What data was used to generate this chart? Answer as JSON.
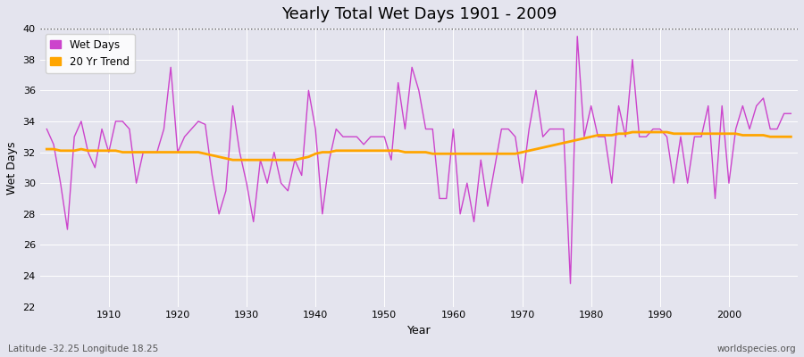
{
  "title": "Yearly Total Wet Days 1901 - 2009",
  "xlabel": "Year",
  "ylabel": "Wet Days",
  "lat_lon_label": "Latitude -32.25 Longitude 18.25",
  "source_label": "worldspecies.org",
  "line_color": "#CC44CC",
  "trend_color": "#FFA500",
  "background_color": "#E0E0E8",
  "plot_bg_color": "#E0E0E8",
  "ylim": [
    22,
    40
  ],
  "yticks": [
    22,
    24,
    26,
    28,
    30,
    32,
    34,
    36,
    38,
    40
  ],
  "dotted_line_y": 40,
  "years": [
    1901,
    1902,
    1903,
    1904,
    1905,
    1906,
    1907,
    1908,
    1909,
    1910,
    1911,
    1912,
    1913,
    1914,
    1915,
    1916,
    1917,
    1918,
    1919,
    1920,
    1921,
    1922,
    1923,
    1924,
    1925,
    1926,
    1927,
    1928,
    1929,
    1930,
    1931,
    1932,
    1933,
    1934,
    1935,
    1936,
    1937,
    1938,
    1939,
    1940,
    1941,
    1942,
    1943,
    1944,
    1945,
    1946,
    1947,
    1948,
    1949,
    1950,
    1951,
    1952,
    1953,
    1954,
    1955,
    1956,
    1957,
    1958,
    1959,
    1960,
    1961,
    1962,
    1963,
    1964,
    1965,
    1966,
    1967,
    1968,
    1969,
    1970,
    1971,
    1972,
    1973,
    1974,
    1975,
    1976,
    1977,
    1978,
    1979,
    1980,
    1981,
    1982,
    1983,
    1984,
    1985,
    1986,
    1987,
    1988,
    1989,
    1990,
    1991,
    1992,
    1993,
    1994,
    1995,
    1996,
    1997,
    1998,
    1999,
    2000,
    2001,
    2002,
    2003,
    2004,
    2005,
    2006,
    2007,
    2008,
    2009
  ],
  "wet_days": [
    33.5,
    32.5,
    30.0,
    27.0,
    33.0,
    34.0,
    32.0,
    31.0,
    33.5,
    32.0,
    34.0,
    34.0,
    33.5,
    30.0,
    32.0,
    32.0,
    32.0,
    33.5,
    37.5,
    32.0,
    33.0,
    33.5,
    34.0,
    33.8,
    30.5,
    28.0,
    29.5,
    35.0,
    32.0,
    30.0,
    27.5,
    31.5,
    30.0,
    32.0,
    30.0,
    29.5,
    31.5,
    30.5,
    36.0,
    33.5,
    28.0,
    31.5,
    33.5,
    33.0,
    33.0,
    33.0,
    32.5,
    33.0,
    33.0,
    33.0,
    31.5,
    36.5,
    33.5,
    37.5,
    36.0,
    33.5,
    33.5,
    29.0,
    29.0,
    33.5,
    28.0,
    30.0,
    27.5,
    31.5,
    28.5,
    31.0,
    33.5,
    33.5,
    33.0,
    30.0,
    33.5,
    36.0,
    33.0,
    33.5,
    33.5,
    33.5,
    23.5,
    39.5,
    33.0,
    35.0,
    33.0,
    33.0,
    30.0,
    35.0,
    33.0,
    38.0,
    33.0,
    33.0,
    33.5,
    33.5,
    33.0,
    30.0,
    33.0,
    30.0,
    33.0,
    33.0,
    35.0,
    29.0,
    35.0,
    30.0,
    33.5,
    35.0,
    33.5,
    35.0,
    35.5,
    33.5,
    33.5,
    34.5,
    34.5
  ],
  "trend_years": [
    1901,
    1902,
    1903,
    1904,
    1905,
    1906,
    1907,
    1908,
    1909,
    1910,
    1911,
    1912,
    1913,
    1914,
    1915,
    1916,
    1917,
    1918,
    1919,
    1920,
    1921,
    1922,
    1923,
    1924,
    1925,
    1926,
    1927,
    1928,
    1929,
    1930,
    1931,
    1932,
    1933,
    1934,
    1935,
    1936,
    1937,
    1938,
    1939,
    1940,
    1941,
    1942,
    1943,
    1944,
    1945,
    1946,
    1947,
    1948,
    1949,
    1950,
    1951,
    1952,
    1953,
    1954,
    1955,
    1956,
    1957,
    1958,
    1959,
    1960,
    1961,
    1962,
    1963,
    1964,
    1965,
    1966,
    1967,
    1968,
    1969,
    1970,
    1971,
    1972,
    1973,
    1974,
    1975,
    1976,
    1977,
    1978,
    1979,
    1980,
    1981,
    1982,
    1983,
    1984,
    1985,
    1986,
    1987,
    1988,
    1989,
    1990,
    1991,
    1992,
    1993,
    1994,
    1995,
    1996,
    1997,
    1998,
    1999,
    2000,
    2001,
    2002,
    2003,
    2004,
    2005,
    2006,
    2007,
    2008,
    2009
  ],
  "trend_values": [
    32.2,
    32.2,
    32.1,
    32.1,
    32.1,
    32.2,
    32.1,
    32.1,
    32.1,
    32.1,
    32.1,
    32.0,
    32.0,
    32.0,
    32.0,
    32.0,
    32.0,
    32.0,
    32.0,
    32.0,
    32.0,
    32.0,
    32.0,
    31.9,
    31.8,
    31.7,
    31.6,
    31.5,
    31.5,
    31.5,
    31.5,
    31.5,
    31.5,
    31.5,
    31.5,
    31.5,
    31.5,
    31.6,
    31.7,
    31.9,
    32.0,
    32.0,
    32.1,
    32.1,
    32.1,
    32.1,
    32.1,
    32.1,
    32.1,
    32.1,
    32.1,
    32.1,
    32.0,
    32.0,
    32.0,
    32.0,
    31.9,
    31.9,
    31.9,
    31.9,
    31.9,
    31.9,
    31.9,
    31.9,
    31.9,
    31.9,
    31.9,
    31.9,
    31.9,
    32.0,
    32.1,
    32.2,
    32.3,
    32.4,
    32.5,
    32.6,
    32.7,
    32.8,
    32.9,
    33.0,
    33.1,
    33.1,
    33.1,
    33.2,
    33.2,
    33.3,
    33.3,
    33.3,
    33.3,
    33.3,
    33.3,
    33.2,
    33.2,
    33.2,
    33.2,
    33.2,
    33.2,
    33.2,
    33.2,
    33.2,
    33.2,
    33.1,
    33.1,
    33.1,
    33.1,
    33.0,
    33.0,
    33.0,
    33.0
  ]
}
